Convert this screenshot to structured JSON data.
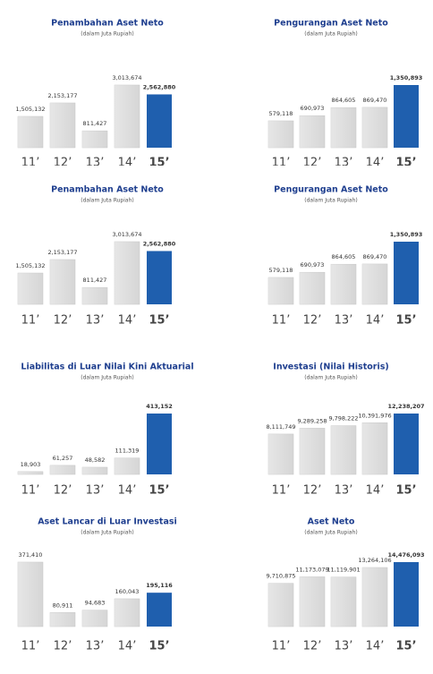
{
  "chart_data": [
    {
      "type": "bar",
      "title": "Penambahan Aset Neto",
      "subtitle": "(dalam Juta Rupiah)",
      "categories": [
        "11’",
        "12’",
        "13’",
        "14’",
        "15’"
      ],
      "values": [
        1505132,
        2153177,
        811427,
        3013674,
        2562880
      ],
      "value_labels": [
        "1,505,132",
        "2,153,177",
        "811,427",
        "3,013,674",
        "2,562,880"
      ],
      "colors": [
        "#d6d6d6",
        "#d6d6d6",
        "#d6d6d6",
        "#d6d6d6",
        "#1f5fae"
      ]
    },
    {
      "type": "bar",
      "title": "Pengurangan Aset Neto",
      "subtitle": "(dalam Juta Rupiah)",
      "categories": [
        "11’",
        "12’",
        "13’",
        "14’",
        "15’"
      ],
      "values": [
        579118,
        690973,
        864605,
        869470,
        1350893
      ],
      "value_labels": [
        "579,118",
        "690,973",
        "864,605",
        "869,470",
        "1,350,893"
      ],
      "colors": [
        "#d6d6d6",
        "#d6d6d6",
        "#d6d6d6",
        "#d6d6d6",
        "#1f5fae"
      ]
    },
    {
      "type": "bar",
      "title": "Penambahan Aset Neto",
      "subtitle": "(dalam Juta Rupiah)",
      "categories": [
        "11’",
        "12’",
        "13’",
        "14’",
        "15’"
      ],
      "values": [
        1505132,
        2153177,
        811427,
        3013674,
        2562880
      ],
      "value_labels": [
        "1,505,132",
        "2,153,177",
        "811,427",
        "3,013,674",
        "2,562,880"
      ],
      "colors": [
        "#d6d6d6",
        "#d6d6d6",
        "#d6d6d6",
        "#d6d6d6",
        "#1f5fae"
      ]
    },
    {
      "type": "bar",
      "title": "Pengurangan Aset Neto",
      "subtitle": "(dalam Juta Rupiah)",
      "categories": [
        "11’",
        "12’",
        "13’",
        "14’",
        "15’"
      ],
      "values": [
        579118,
        690973,
        864605,
        869470,
        1350893
      ],
      "value_labels": [
        "579,118",
        "690,973",
        "864,605",
        "869,470",
        "1,350,893"
      ],
      "colors": [
        "#d6d6d6",
        "#d6d6d6",
        "#d6d6d6",
        "#d6d6d6",
        "#1f5fae"
      ]
    },
    {
      "type": "bar",
      "title": "Liabilitas di Luar Nilai Kini Aktuarial",
      "subtitle": "(dalam Juta Rupiah)",
      "categories": [
        "11’",
        "12’",
        "13’",
        "14’",
        "15’"
      ],
      "values": [
        18903,
        61257,
        48582,
        111319,
        413152
      ],
      "value_labels": [
        "18,903",
        "61,257",
        "48,582",
        "111,319",
        "413,152"
      ],
      "colors": [
        "#d6d6d6",
        "#d6d6d6",
        "#d6d6d6",
        "#d6d6d6",
        "#1f5fae"
      ]
    },
    {
      "type": "bar",
      "title": "Investasi (Nilai Historis)",
      "subtitle": "(dalam Juta Rupiah)",
      "categories": [
        "11’",
        "12’",
        "13’",
        "14’",
        "15’"
      ],
      "values": [
        8111749,
        9289258,
        9798222,
        10391976,
        12238207
      ],
      "value_labels": [
        "8,111,749",
        "9,289,258",
        "9,798,222",
        "10,391,976",
        "12,238,207"
      ],
      "colors": [
        "#d6d6d6",
        "#d6d6d6",
        "#d6d6d6",
        "#d6d6d6",
        "#1f5fae"
      ]
    },
    {
      "type": "bar",
      "title": "Aset Lancar di Luar Investasi",
      "subtitle": "(dalam Juta Rupiah)",
      "categories": [
        "11’",
        "12’",
        "13’",
        "14’",
        "15’"
      ],
      "values": [
        371410,
        80911,
        94683,
        160043,
        195116
      ],
      "value_labels": [
        "371,410",
        "80,911",
        "94,683",
        "160,043",
        "195,116"
      ],
      "colors": [
        "#d6d6d6",
        "#d6d6d6",
        "#d6d6d6",
        "#d6d6d6",
        "#1f5fae"
      ]
    },
    {
      "type": "bar",
      "title": "Aset Neto",
      "subtitle": "(dalam Juta Rupiah)",
      "categories": [
        "11’",
        "12’",
        "13’",
        "14’",
        "15’"
      ],
      "values": [
        9710875,
        11173079,
        11119901,
        13264106,
        14476093
      ],
      "value_labels": [
        "9,710,875",
        "11,173,079",
        "11,119,901",
        "13,264,106",
        "14,476,093"
      ],
      "colors": [
        "#d6d6d6",
        "#d6d6d6",
        "#d6d6d6",
        "#d6d6d6",
        "#1f5fae"
      ]
    }
  ]
}
